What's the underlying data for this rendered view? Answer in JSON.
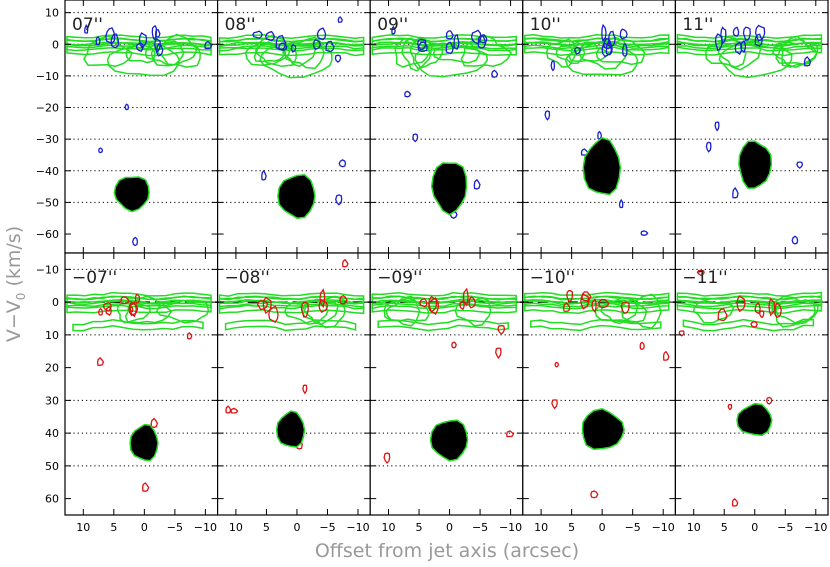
{
  "figure": {
    "ylabel_main": "V−V",
    "ylabel_sub": "0",
    "ylabel_units": " (km/s)",
    "xlabel": "Offset from jet axis (arcsec)"
  },
  "chart_data": {
    "type": "contour",
    "xlabel": "Offset from jet axis (arcsec)",
    "ylabel": "V−V0 (km/s)",
    "x_range": [
      13,
      -12
    ],
    "x_ticks": [
      10,
      5,
      0,
      -5,
      -10
    ],
    "top_row": {
      "y_range": [
        14,
        -66
      ],
      "y_ticks": [
        -60,
        -50,
        -40,
        -30,
        -20,
        -10,
        0,
        10
      ],
      "y_tick_labels": [
        "−60",
        "−50",
        "−40",
        "−30",
        "−20",
        "−10",
        "0",
        "10"
      ],
      "dotted_grid_at": [
        -50,
        -40,
        -30,
        -20,
        -10,
        0,
        10
      ],
      "jet_color": "#1a1fd1",
      "panels": [
        {
          "label": "07''",
          "jet_center": [
            2,
            -47
          ],
          "jet_halfwidth": [
            1.5,
            4
          ]
        },
        {
          "label": "08''",
          "jet_center": [
            0,
            -48
          ],
          "jet_halfwidth": [
            1.6,
            5
          ]
        },
        {
          "label": "09''",
          "jet_center": [
            0,
            -45
          ],
          "jet_halfwidth": [
            1.5,
            6
          ]
        },
        {
          "label": "10''",
          "jet_center": [
            0,
            -39
          ],
          "jet_halfwidth": [
            1.6,
            6.5
          ]
        },
        {
          "label": "11''",
          "jet_center": [
            0,
            -38
          ],
          "jet_halfwidth": [
            1.4,
            5.5
          ]
        }
      ]
    },
    "bottom_row": {
      "y_range": [
        -15,
        65
      ],
      "y_ticks": [
        -10,
        0,
        10,
        20,
        30,
        40,
        50,
        60
      ],
      "y_tick_labels": [
        "−10",
        "0",
        "10",
        "20",
        "30",
        "40",
        "50",
        "60"
      ],
      "dotted_grid_at": [
        -10,
        10,
        30,
        40,
        50
      ],
      "dashed_line_at": 0,
      "jet_color": "#e01414",
      "panels": [
        {
          "label": "−07''",
          "jet_center": [
            0,
            43
          ],
          "jet_halfwidth": [
            1.2,
            4
          ]
        },
        {
          "label": "−08''",
          "jet_center": [
            1,
            39
          ],
          "jet_halfwidth": [
            1.2,
            4
          ]
        },
        {
          "label": "−09''",
          "jet_center": [
            0,
            42
          ],
          "jet_halfwidth": [
            1.6,
            4.5
          ]
        },
        {
          "label": "−10''",
          "jet_center": [
            0,
            39
          ],
          "jet_halfwidth": [
            1.8,
            4.5
          ]
        },
        {
          "label": "−11''",
          "jet_center": [
            0,
            36
          ],
          "jet_halfwidth": [
            1.5,
            3.5
          ]
        }
      ]
    },
    "cloud_color": "#22dd22"
  }
}
